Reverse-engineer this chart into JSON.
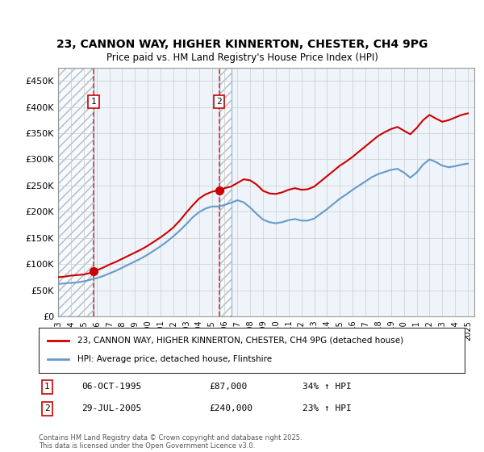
{
  "title_line1": "23, CANNON WAY, HIGHER KINNERTON, CHESTER, CH4 9PG",
  "title_line2": "Price paid vs. HM Land Registry's House Price Index (HPI)",
  "legend_line1": "23, CANNON WAY, HIGHER KINNERTON, CHESTER, CH4 9PG (detached house)",
  "legend_line2": "HPI: Average price, detached house, Flintshire",
  "footnote": "Contains HM Land Registry data © Crown copyright and database right 2025.\nThis data is licensed under the Open Government Licence v3.0.",
  "transaction1_label": "1",
  "transaction1_date": "06-OCT-1995",
  "transaction1_price": "£87,000",
  "transaction1_hpi": "34% ↑ HPI",
  "transaction1_x": 1995.77,
  "transaction1_y": 87000,
  "transaction2_label": "2",
  "transaction2_date": "29-JUL-2005",
  "transaction2_price": "£240,000",
  "transaction2_hpi": "23% ↑ HPI",
  "transaction2_x": 2005.57,
  "transaction2_y": 240000,
  "hatch_region_start": 1993.0,
  "hatch_region_end": 1995.77,
  "hatch_region2_start": 2005.57,
  "hatch_region2_end": 2006.5,
  "red_line_color": "#cc0000",
  "blue_line_color": "#6699cc",
  "hatch_color": "#ccddee",
  "grid_color": "#cccccc",
  "background_color": "#ffffff",
  "plot_bg_color": "#eef4fa",
  "ylim": [
    0,
    475000
  ],
  "xlim_start": 1993.0,
  "xlim_end": 2025.5,
  "yticks": [
    0,
    50000,
    100000,
    150000,
    200000,
    250000,
    300000,
    350000,
    400000,
    450000
  ],
  "ytick_labels": [
    "£0",
    "£50K",
    "£100K",
    "£150K",
    "£200K",
    "£250K",
    "£300K",
    "£350K",
    "£400K",
    "£450K"
  ],
  "xticks": [
    1993,
    1994,
    1995,
    1996,
    1997,
    1998,
    1999,
    2000,
    2001,
    2002,
    2003,
    2004,
    2005,
    2006,
    2007,
    2008,
    2009,
    2010,
    2011,
    2012,
    2013,
    2014,
    2015,
    2016,
    2017,
    2018,
    2019,
    2020,
    2021,
    2022,
    2023,
    2024,
    2025
  ],
  "red_series_x": [
    1993.0,
    1993.5,
    1994.0,
    1994.5,
    1995.0,
    1995.5,
    1995.77,
    1996.0,
    1996.5,
    1997.0,
    1997.5,
    1998.0,
    1998.5,
    1999.0,
    1999.5,
    2000.0,
    2000.5,
    2001.0,
    2001.5,
    2002.0,
    2002.5,
    2003.0,
    2003.5,
    2004.0,
    2004.5,
    2005.0,
    2005.5,
    2005.57,
    2006.0,
    2006.5,
    2007.0,
    2007.5,
    2008.0,
    2008.5,
    2009.0,
    2009.5,
    2010.0,
    2010.5,
    2011.0,
    2011.5,
    2012.0,
    2012.5,
    2013.0,
    2013.5,
    2014.0,
    2014.5,
    2015.0,
    2015.5,
    2016.0,
    2016.5,
    2017.0,
    2017.5,
    2018.0,
    2018.5,
    2019.0,
    2019.5,
    2020.0,
    2020.5,
    2021.0,
    2021.5,
    2022.0,
    2022.5,
    2023.0,
    2023.5,
    2024.0,
    2024.5,
    2025.0
  ],
  "red_series_y": [
    75000,
    76000,
    78000,
    79000,
    80000,
    83000,
    87000,
    88000,
    93000,
    99000,
    104000,
    110000,
    116000,
    122000,
    128000,
    135000,
    143000,
    151000,
    160000,
    170000,
    183000,
    198000,
    212000,
    225000,
    233000,
    238000,
    241000,
    240000,
    245000,
    248000,
    255000,
    262000,
    260000,
    252000,
    240000,
    235000,
    234000,
    237000,
    242000,
    245000,
    242000,
    243000,
    248000,
    258000,
    268000,
    278000,
    288000,
    296000,
    305000,
    315000,
    325000,
    335000,
    345000,
    352000,
    358000,
    362000,
    355000,
    348000,
    360000,
    375000,
    385000,
    378000,
    372000,
    375000,
    380000,
    385000,
    388000
  ],
  "blue_series_x": [
    1993.0,
    1993.5,
    1994.0,
    1994.5,
    1995.0,
    1995.5,
    1996.0,
    1996.5,
    1997.0,
    1997.5,
    1998.0,
    1998.5,
    1999.0,
    1999.5,
    2000.0,
    2000.5,
    2001.0,
    2001.5,
    2002.0,
    2002.5,
    2003.0,
    2003.5,
    2004.0,
    2004.5,
    2005.0,
    2005.5,
    2006.0,
    2006.5,
    2007.0,
    2007.5,
    2008.0,
    2008.5,
    2009.0,
    2009.5,
    2010.0,
    2010.5,
    2011.0,
    2011.5,
    2012.0,
    2012.5,
    2013.0,
    2013.5,
    2014.0,
    2014.5,
    2015.0,
    2015.5,
    2016.0,
    2016.5,
    2017.0,
    2017.5,
    2018.0,
    2018.5,
    2019.0,
    2019.5,
    2020.0,
    2020.5,
    2021.0,
    2021.5,
    2022.0,
    2022.5,
    2023.0,
    2023.5,
    2024.0,
    2024.5,
    2025.0
  ],
  "blue_series_y": [
    62000,
    63000,
    64000,
    65000,
    67000,
    70000,
    73000,
    77000,
    82000,
    87000,
    93000,
    99000,
    105000,
    111000,
    118000,
    126000,
    134000,
    143000,
    153000,
    164000,
    176000,
    189000,
    199000,
    206000,
    210000,
    210000,
    213000,
    217000,
    222000,
    218000,
    208000,
    196000,
    185000,
    180000,
    178000,
    180000,
    184000,
    186000,
    183000,
    183000,
    187000,
    196000,
    205000,
    215000,
    225000,
    233000,
    242000,
    250000,
    258000,
    266000,
    272000,
    276000,
    280000,
    282000,
    275000,
    265000,
    275000,
    290000,
    300000,
    295000,
    288000,
    285000,
    287000,
    290000,
    292000
  ]
}
